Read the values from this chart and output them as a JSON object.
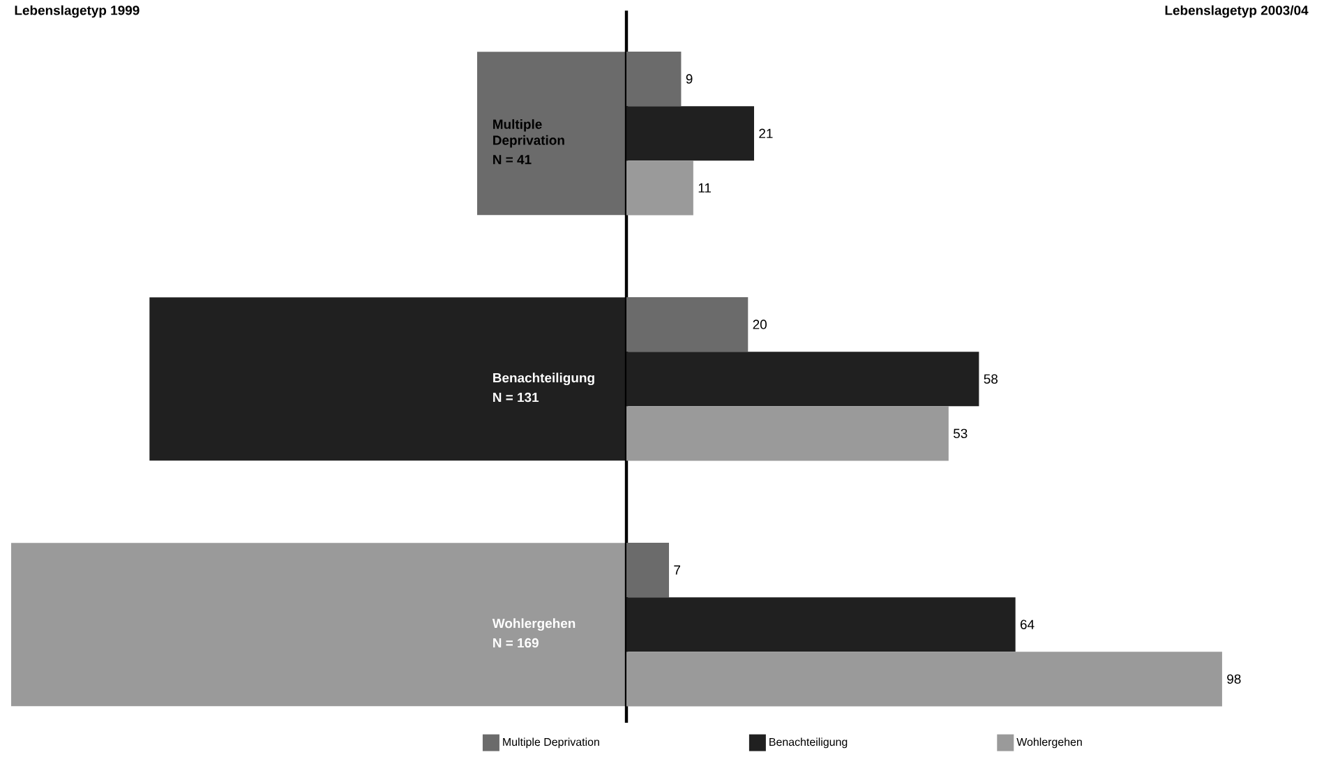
{
  "chart_data": [
    {
      "type": "bar",
      "orientation": "horizontal",
      "title": "Lebenslagetyp 1999",
      "categories": [
        "Multiple Deprivation",
        "Benachteiligung",
        "Wohlergehen"
      ],
      "values": [
        41,
        131,
        169
      ],
      "colors": [
        "#6b6b6b",
        "#202020",
        "#9a9a9a"
      ],
      "value_labels": [
        "N = 41",
        "N = 131",
        "N = 169"
      ],
      "xlim": [
        169,
        0
      ]
    },
    {
      "type": "bar",
      "orientation": "horizontal",
      "title": "Lebenslagetyp 2003/04",
      "categories": [
        null,
        null,
        null
      ],
      "data_labels": true,
      "legend": "bottom",
      "series": [
        {
          "name": "Multiple Deprivation",
          "color": "#6b6b6b",
          "values": [
            9,
            20,
            7
          ]
        },
        {
          "name": "Benachteiligung",
          "color": "#202020",
          "values": [
            21,
            58,
            64
          ]
        },
        {
          "name": "Wohlergehen",
          "color": "#9a9a9a",
          "values": [
            11,
            53,
            98
          ]
        }
      ]
    }
  ]
}
